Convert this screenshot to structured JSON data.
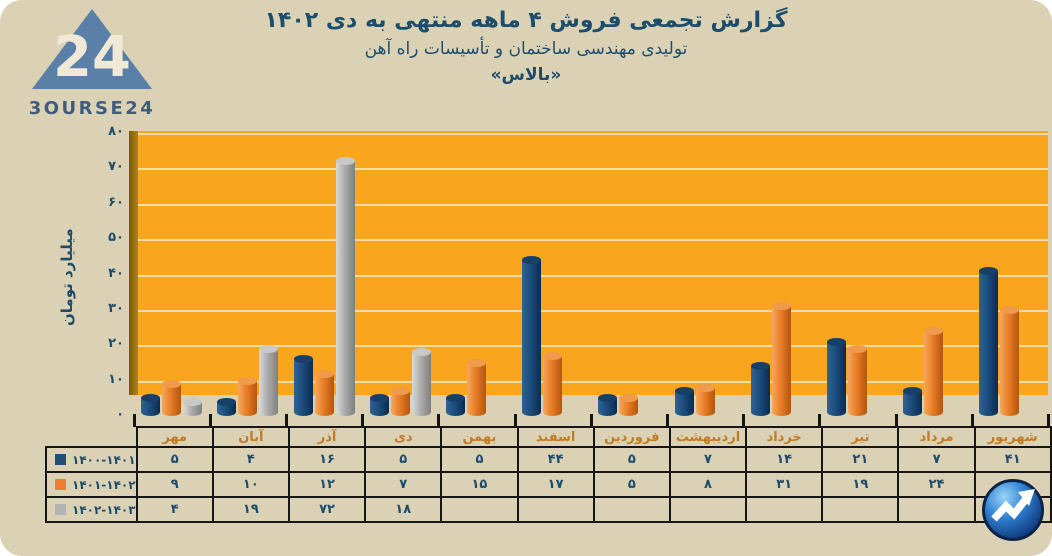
{
  "header": {
    "logo": {
      "number": "24",
      "brand_text": "3OURSE24"
    },
    "title": "گزارش تجمعی فروش ۴ ماهه منتهی به دی ۱۴۰۲",
    "subtitle": "تولیدی مهندسی ساختمان و تأسیسات راه آهن",
    "company": "«بالاس»"
  },
  "colors": {
    "card_bg": "#DBD2B6",
    "plot_bg": "#F9A51D",
    "wall_edge": "#9A7110",
    "gridline": "#F3E6C0",
    "text_blue": "#1D4D6B",
    "month_header_text": "#BF7B28",
    "table_border": "#151515",
    "series_blue": "#1F4E79",
    "series_orange": "#ED7D31",
    "series_gray": "#B3B3B3"
  },
  "chart_data": {
    "type": "bar",
    "title": "گزارش تجمعی فروش ۴ ماهه منتهی به دی ۱۴۰۲",
    "ylabel": "میلیارد تومان",
    "ylim": [
      0,
      80
    ],
    "ytick_step": 10,
    "yticks": [
      0,
      10,
      20,
      30,
      40,
      50,
      60,
      70,
      80
    ],
    "yticks_fa": [
      "۰",
      "۱۰",
      "۲۰",
      "۳۰",
      "۴۰",
      "۵۰",
      "۶۰",
      "۷۰",
      "۸۰"
    ],
    "grid": "horizontal",
    "legend_position": "table-left",
    "categories_fa": [
      "مهر",
      "آبان",
      "آذر",
      "دی",
      "بهمن",
      "اسفند",
      "فروردین",
      "اردیبهشت",
      "خرداد",
      "تیر",
      "مرداد",
      "شهریور"
    ],
    "series": [
      {
        "name_fa": "۱۴۰۰-۱۴۰۱",
        "color": "#1F4E79",
        "values": [
          5,
          4,
          16,
          5,
          5,
          44,
          5,
          7,
          14,
          21,
          7,
          41
        ],
        "values_fa": [
          "۵",
          "۴",
          "۱۶",
          "۵",
          "۵",
          "۴۴",
          "۵",
          "۷",
          "۱۴",
          "۲۱",
          "۷",
          "۴۱"
        ]
      },
      {
        "name_fa": "۱۴۰۱-۱۴۰۲",
        "color": "#ED7D31",
        "values": [
          9,
          10,
          12,
          7,
          15,
          17,
          5,
          8,
          31,
          19,
          24,
          30
        ],
        "values_fa": [
          "۹",
          "۱۰",
          "۱۲",
          "۷",
          "۱۵",
          "۱۷",
          "۵",
          "۸",
          "۳۱",
          "۱۹",
          "۲۴",
          "۳۰"
        ]
      },
      {
        "name_fa": "۱۴۰۲-۱۴۰۳",
        "color": "#B3B3B3",
        "values": [
          4,
          19,
          72,
          18,
          null,
          null,
          null,
          null,
          null,
          null,
          null,
          null
        ],
        "values_fa": [
          "۴",
          "۱۹",
          "۷۲",
          "۱۸",
          "",
          "",
          "",
          "",
          "",
          "",
          "",
          ""
        ]
      }
    ]
  }
}
